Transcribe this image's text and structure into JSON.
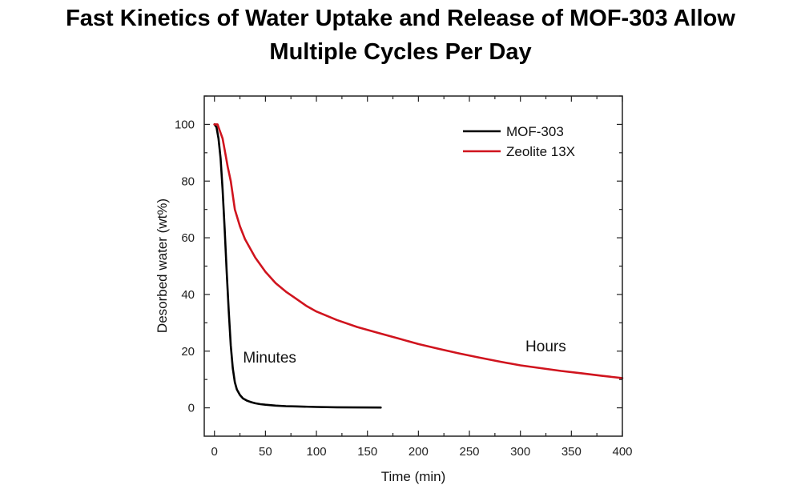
{
  "slide": {
    "title_line1": "Fast Kinetics of Water Uptake and Release of MOF-303 Allow",
    "title_line2": "Multiple Cycles Per Day"
  },
  "chart_data": {
    "type": "line",
    "title": "",
    "xlabel": "Time (min)",
    "ylabel": "Desorbed water (wt%)",
    "xlim": [
      -10,
      400
    ],
    "ylim": [
      -10,
      110
    ],
    "xticks": [
      0,
      50,
      100,
      150,
      200,
      250,
      300,
      350,
      400
    ],
    "yticks": [
      0,
      20,
      40,
      60,
      80,
      100
    ],
    "grid": false,
    "legend_position": "top-right",
    "series": [
      {
        "name": "MOF-303",
        "color": "#000000",
        "x": [
          0,
          2,
          4,
          6,
          8,
          10,
          12,
          14,
          16,
          18,
          20,
          22,
          25,
          28,
          32,
          36,
          40,
          45,
          50,
          60,
          70,
          80,
          100,
          120,
          140,
          163
        ],
        "y": [
          100,
          99,
          95,
          88,
          77,
          63,
          48,
          34,
          22,
          14,
          9,
          6.5,
          4.5,
          3.3,
          2.5,
          2.0,
          1.6,
          1.3,
          1.1,
          0.8,
          0.6,
          0.5,
          0.3,
          0.2,
          0.15,
          0.1
        ]
      },
      {
        "name": "Zeolite 13X",
        "color": "#d0141e",
        "x": [
          0,
          3,
          5,
          8,
          10,
          13,
          16,
          20,
          25,
          30,
          40,
          50,
          60,
          70,
          80,
          90,
          100,
          120,
          140,
          160,
          180,
          200,
          220,
          240,
          260,
          280,
          300,
          320,
          340,
          360,
          380,
          400
        ],
        "y": [
          100,
          100,
          98,
          95,
          91,
          85,
          80,
          70,
          64,
          59.5,
          53,
          48,
          44,
          41,
          38.5,
          36,
          34,
          31,
          28.5,
          26.5,
          24.5,
          22.5,
          20.8,
          19.2,
          17.7,
          16.3,
          15.0,
          14.0,
          13.0,
          12.2,
          11.3,
          10.5
        ]
      }
    ],
    "annotations": [
      {
        "text": "Minutes",
        "x": 28,
        "y": 16
      },
      {
        "text": "Hours",
        "x": 305,
        "y": 20
      }
    ]
  }
}
